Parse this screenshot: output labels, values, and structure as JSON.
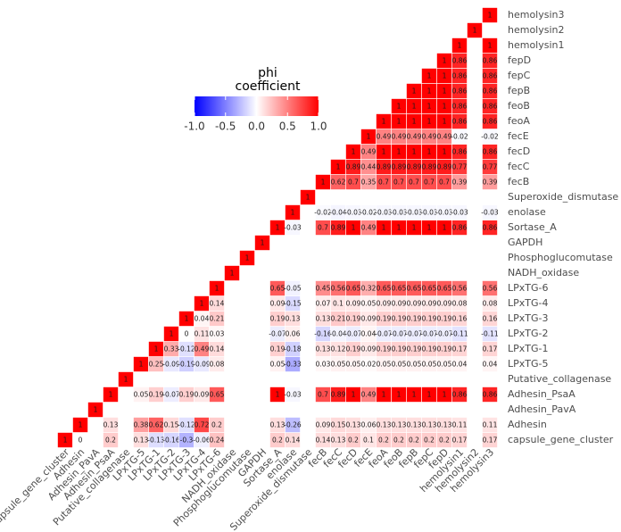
{
  "chart_data": {
    "type": "heatmap",
    "variables": [
      "capsule_gene_cluster",
      "Adhesin",
      "Adhesin_PavA",
      "Adhesin_PsaA",
      "Putative_collagenase",
      "LPxTG-5",
      "LPxTG-1",
      "LPxTG-2",
      "LPxTG-3",
      "LPxTG-4",
      "LPxTG-6",
      "NADH_oxidase",
      "Phosphoglucomutase",
      "GAPDH",
      "Sortase_A",
      "enolase",
      "Superoxide_dismutase",
      "fecB",
      "fecC",
      "fecD",
      "fecE",
      "feoA",
      "feoB",
      "fepB",
      "fepC",
      "fepD",
      "hemolysin1",
      "hemolysin2",
      "hemolysin3"
    ],
    "rows": [
      [
        1,
        0,
        null,
        0.2,
        null,
        0.13,
        -0.13,
        -0.16,
        -0.3,
        -0.06,
        0.24,
        null,
        null,
        null,
        0.2,
        0.14,
        null,
        0.14,
        0.13,
        0.2,
        0.1,
        0.2,
        0.2,
        0.2,
        0.2,
        0.2,
        0.17,
        null,
        0.17
      ],
      [
        1,
        null,
        0.13,
        null,
        0.38,
        0.62,
        0.15,
        -0.12,
        0.72,
        0.2,
        null,
        null,
        null,
        0.13,
        -0.26,
        null,
        0.09,
        0.15,
        0.13,
        0.06,
        0.13,
        0.13,
        0.13,
        0.13,
        0.13,
        0.11,
        null,
        0.11
      ],
      [
        1,
        null,
        null,
        null,
        null,
        null,
        null,
        null,
        null,
        null,
        null,
        null,
        null,
        null,
        null,
        null,
        null,
        null,
        null,
        null,
        null,
        null,
        null,
        null,
        null,
        null,
        null
      ],
      [
        1,
        null,
        0.05,
        0.19,
        -0.07,
        0.19,
        0.09,
        0.65,
        null,
        null,
        null,
        1,
        -0.03,
        null,
        0.7,
        0.89,
        1,
        0.49,
        1,
        1,
        1,
        1,
        1,
        0.86,
        null,
        0.86
      ],
      [
        1,
        null,
        null,
        null,
        null,
        null,
        null,
        null,
        null,
        null,
        null,
        null,
        null,
        null,
        null,
        null,
        null,
        null,
        null,
        null,
        null,
        null,
        null,
        null,
        null
      ],
      [
        1,
        0.25,
        -0.09,
        -0.19,
        -0.09,
        0.08,
        null,
        null,
        null,
        0.05,
        -0.33,
        null,
        0.03,
        0.05,
        0.05,
        0.02,
        0.05,
        0.05,
        0.05,
        0.05,
        0.05,
        0.04,
        null,
        0.04
      ],
      [
        1,
        0.33,
        -0.12,
        0.49,
        0.14,
        null,
        null,
        null,
        0.19,
        -0.18,
        null,
        0.13,
        0.12,
        0.19,
        0.09,
        0.19,
        0.19,
        0.19,
        0.19,
        0.19,
        0.17,
        null,
        0.17
      ],
      [
        1,
        0,
        0.11,
        0.03,
        null,
        null,
        null,
        -0.07,
        0.06,
        null,
        -0.16,
        -0.04,
        -0.07,
        0.04,
        -0.07,
        -0.07,
        -0.07,
        -0.07,
        -0.07,
        -0.11,
        null,
        -0.11
      ],
      [
        1,
        0.04,
        0.21,
        null,
        null,
        null,
        0.19,
        0.13,
        null,
        0.13,
        0.21,
        0.19,
        0.09,
        0.19,
        0.19,
        0.19,
        0.19,
        0.19,
        0.16,
        null,
        0.16
      ],
      [
        1,
        0.14,
        null,
        null,
        null,
        0.09,
        -0.15,
        null,
        0.07,
        0.1,
        0.09,
        0.05,
        0.09,
        0.09,
        0.09,
        0.09,
        0.09,
        0.08,
        null,
        0.08
      ],
      [
        1,
        null,
        null,
        null,
        0.65,
        -0.05,
        null,
        0.45,
        0.56,
        0.65,
        0.32,
        0.65,
        0.65,
        0.65,
        0.65,
        0.65,
        0.56,
        null,
        0.56
      ],
      [
        1,
        null,
        null,
        null,
        null,
        null,
        null,
        null,
        null,
        null,
        null,
        null,
        null,
        null,
        null,
        null,
        null,
        null
      ],
      [
        1,
        null,
        null,
        null,
        null,
        null,
        null,
        null,
        null,
        null,
        null,
        null,
        null,
        null,
        null,
        null,
        null
      ],
      [
        1,
        null,
        null,
        null,
        null,
        null,
        null,
        null,
        null,
        null,
        null,
        null,
        null,
        null,
        null,
        null
      ],
      [
        1,
        -0.03,
        null,
        0.7,
        0.89,
        1,
        0.49,
        1,
        1,
        1,
        1,
        1,
        0.86,
        null,
        0.86
      ],
      [
        1,
        null,
        -0.02,
        -0.04,
        -0.03,
        -0.02,
        -0.03,
        -0.03,
        -0.03,
        -0.03,
        -0.03,
        -0.03,
        null,
        -0.03
      ],
      [
        1,
        null,
        null,
        null,
        null,
        null,
        null,
        null,
        null,
        null,
        null,
        null,
        null
      ],
      [
        1,
        0.62,
        0.7,
        0.35,
        0.7,
        0.7,
        0.7,
        0.7,
        0.7,
        0.39,
        null,
        0.39
      ],
      [
        1,
        0.89,
        0.44,
        0.89,
        0.89,
        0.89,
        0.89,
        0.89,
        0.77,
        null,
        0.77
      ],
      [
        1,
        0.49,
        1,
        1,
        1,
        1,
        1,
        0.86,
        null,
        0.86
      ],
      [
        1,
        0.49,
        0.49,
        0.49,
        0.49,
        0.49,
        -0.02,
        null,
        -0.02
      ],
      [
        1,
        1,
        1,
        1,
        1,
        0.86,
        null,
        0.86
      ],
      [
        1,
        1,
        1,
        1,
        0.86,
        null,
        0.86
      ],
      [
        1,
        1,
        1,
        0.86,
        null,
        0.86
      ],
      [
        1,
        1,
        0.86,
        null,
        0.86
      ],
      [
        1,
        0.86,
        null,
        0.86
      ],
      [
        1,
        null,
        1
      ],
      [
        1,
        null
      ],
      [
        1
      ]
    ],
    "legend_title": [
      "phi",
      "coefficient"
    ],
    "colorbar": {
      "lim": [
        -1,
        1
      ],
      "ticks": [
        {
          "value": -1,
          "label": "-1.0"
        },
        {
          "value": -0.5,
          "label": "-0.5"
        },
        {
          "value": 0,
          "label": "0.0"
        },
        {
          "value": 0.5,
          "label": "0.5"
        },
        {
          "value": 1,
          "label": "1.0"
        }
      ],
      "colors": [
        "#0000ff",
        "#ffffff",
        "#ff0000"
      ]
    }
  }
}
